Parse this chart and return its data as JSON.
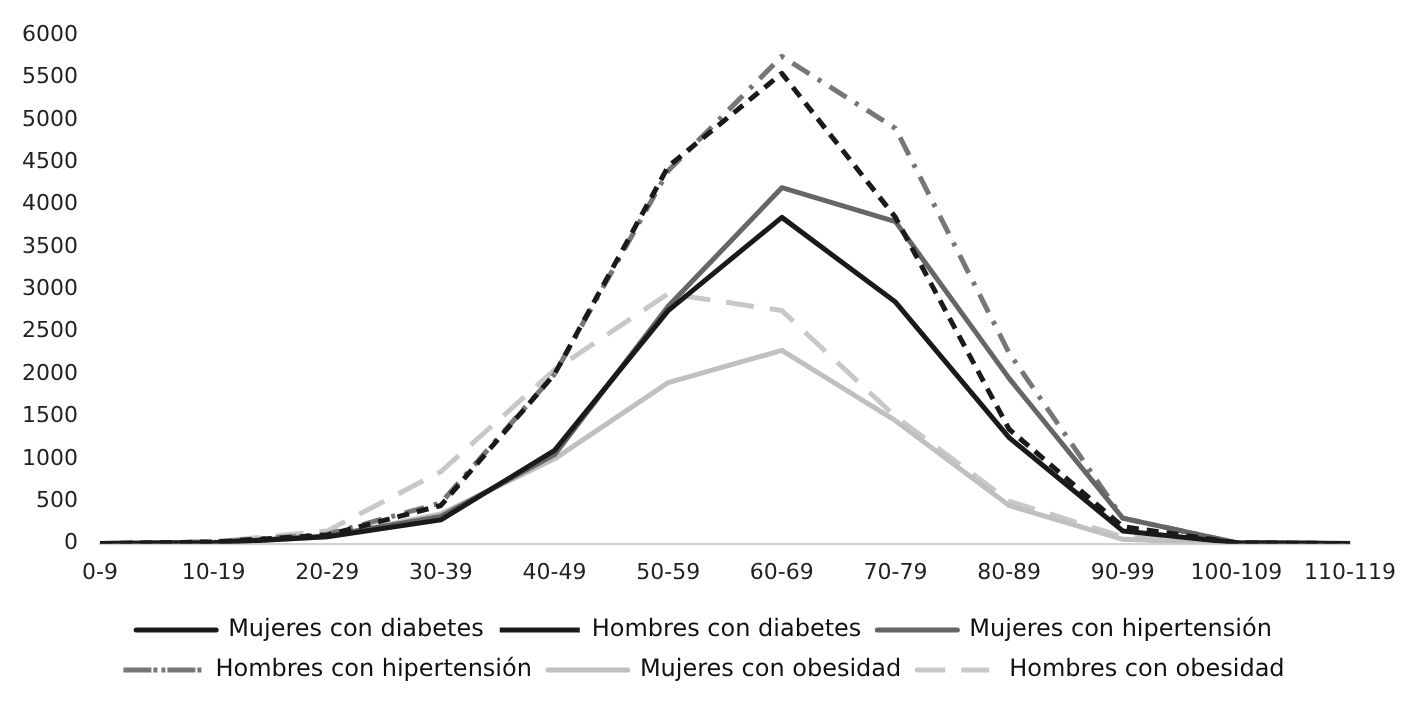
{
  "chart_data": {
    "type": "line",
    "categories": [
      "0-9",
      "10-19",
      "20-29",
      "30-39",
      "40-49",
      "50-59",
      "60-69",
      "70-79",
      "80-89",
      "90-99",
      "100-109",
      "110-119"
    ],
    "series": [
      {
        "name": "Mujeres con diabetes",
        "color": "#1a1a1a",
        "line_style": "solid",
        "values": [
          0,
          10,
          80,
          280,
          1100,
          2750,
          3850,
          2850,
          1250,
          150,
          10,
          0
        ]
      },
      {
        "name": "Hombres con diabetes",
        "color": "#1a1a1a",
        "line_style": "dashed",
        "values": [
          0,
          20,
          100,
          450,
          2000,
          4450,
          5550,
          3850,
          1350,
          200,
          10,
          0
        ]
      },
      {
        "name": "Mujeres con hipertensión",
        "color": "#666666",
        "line_style": "solid",
        "values": [
          0,
          10,
          90,
          320,
          1050,
          2800,
          4200,
          3800,
          1950,
          300,
          10,
          0
        ]
      },
      {
        "name": "Hombres con hipertensión",
        "color": "#777777",
        "line_style": "dashed",
        "values": [
          0,
          20,
          110,
          480,
          2000,
          4400,
          5750,
          4900,
          2250,
          300,
          10,
          0
        ]
      },
      {
        "name": "Mujeres con obesidad",
        "color": "#c0c0c0",
        "line_style": "solid",
        "values": [
          0,
          10,
          80,
          350,
          1000,
          1900,
          2280,
          1450,
          450,
          50,
          0,
          0
        ]
      },
      {
        "name": "Hombres con obesidad",
        "color": "#c8c8c8",
        "line_style": "dashed",
        "values": [
          0,
          20,
          150,
          850,
          2050,
          2950,
          2750,
          1500,
          500,
          80,
          0,
          0
        ]
      }
    ],
    "ylim": [
      0,
      6000
    ],
    "yticks": [
      0,
      500,
      1000,
      1500,
      2000,
      2500,
      3000,
      3500,
      4000,
      4500,
      5000,
      5500,
      6000
    ],
    "grid": false,
    "legend": "bottom",
    "marker": "none"
  }
}
